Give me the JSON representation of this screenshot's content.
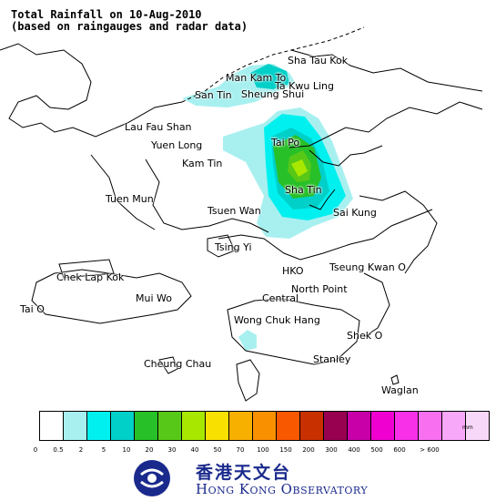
{
  "title": {
    "line1": "Total Rainfall on 10-Aug-2010",
    "line2": "(based on raingauges and radar data)"
  },
  "places": [
    {
      "id": "sha-tau-kok",
      "label": "Sha Tau Kok"
    },
    {
      "id": "man-kam-to",
      "label": "Man Kam To"
    },
    {
      "id": "ta-kwu-ling",
      "label": "Ta Kwu Ling"
    },
    {
      "id": "san-tin",
      "label": "San Tin"
    },
    {
      "id": "sheung-shui",
      "label": "Sheung Shui"
    },
    {
      "id": "lau-fau-shan",
      "label": "Lau Fau Shan"
    },
    {
      "id": "yuen-long",
      "label": "Yuen Long"
    },
    {
      "id": "tai-po",
      "label": "Tai Po"
    },
    {
      "id": "kam-tin",
      "label": "Kam Tin"
    },
    {
      "id": "tuen-mun",
      "label": "Tuen Mun"
    },
    {
      "id": "sha-tin",
      "label": "Sha Tin"
    },
    {
      "id": "tsuen-wan",
      "label": "Tsuen Wan"
    },
    {
      "id": "sai-kung",
      "label": "Sai Kung"
    },
    {
      "id": "tsing-yi",
      "label": "Tsing Yi"
    },
    {
      "id": "chek-lap-kok",
      "label": "Chek Lap Kok"
    },
    {
      "id": "hko",
      "label": "HKO"
    },
    {
      "id": "tseung-kwan-o",
      "label": "Tseung Kwan O"
    },
    {
      "id": "north-point",
      "label": "North Point"
    },
    {
      "id": "mui-wo",
      "label": "Mui Wo"
    },
    {
      "id": "central",
      "label": "Central"
    },
    {
      "id": "tai-o",
      "label": "Tai O"
    },
    {
      "id": "wong-chuk-hang",
      "label": "Wong Chuk Hang"
    },
    {
      "id": "shek-o",
      "label": "Shek O"
    },
    {
      "id": "cheung-chau",
      "label": "Cheung Chau"
    },
    {
      "id": "stanley",
      "label": "Stanley"
    },
    {
      "id": "waglan",
      "label": "Waglan"
    }
  ],
  "legend": {
    "unit": "mm",
    "colors": [
      "#ffffff",
      "#a8f0f0",
      "#00f0f0",
      "#00d0c8",
      "#28c028",
      "#58c818",
      "#a8e800",
      "#f8e000",
      "#f8b000",
      "#f89000",
      "#f85800",
      "#c83000",
      "#980050",
      "#c800a8",
      "#f000d0",
      "#f830e8",
      "#f870f0",
      "#f8a8f8",
      "#f8d8f8"
    ],
    "ticks": [
      "0",
      "0.5",
      "2",
      "5",
      "10",
      "20",
      "30",
      "40",
      "50",
      "70",
      "100",
      "150",
      "200",
      "300",
      "400",
      "500",
      "600",
      "> 600"
    ]
  },
  "logo": {
    "chinese_name": "香港天文台",
    "english_name": "Hong Kong Observatory"
  }
}
